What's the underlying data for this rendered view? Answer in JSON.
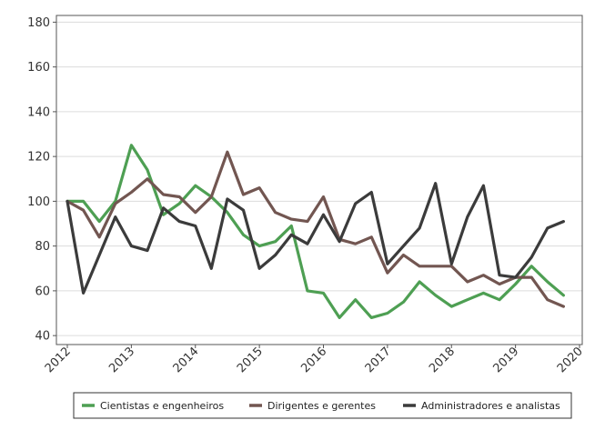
{
  "chart_data": {
    "type": "line",
    "title": "",
    "xlabel": "",
    "ylabel": "",
    "x_ticks": [
      "2012",
      "2013",
      "2014",
      "2015",
      "2016",
      "2017",
      "2018",
      "2019",
      "2020"
    ],
    "y_ticks": [
      40,
      60,
      80,
      100,
      120,
      140,
      160,
      180
    ],
    "xlim": [
      2012,
      2020
    ],
    "ylim": [
      36,
      183
    ],
    "grid": "horizontal",
    "legend_position": "bottom",
    "x": [
      2012.0,
      2012.25,
      2012.5,
      2012.75,
      2013.0,
      2013.25,
      2013.5,
      2013.75,
      2014.0,
      2014.25,
      2014.5,
      2014.75,
      2015.0,
      2015.25,
      2015.5,
      2015.75,
      2016.0,
      2016.25,
      2016.5,
      2016.75,
      2017.0,
      2017.25,
      2017.5,
      2017.75,
      2018.0,
      2018.25,
      2018.5,
      2018.75,
      2019.0,
      2019.25,
      2019.5,
      2019.75
    ],
    "series": [
      {
        "name": "Cientistas e engenheiros",
        "color": "#4e9f53",
        "values": [
          100,
          100,
          91,
          100,
          125,
          114,
          94,
          99,
          107,
          102,
          95,
          85,
          80,
          82,
          89,
          60,
          59,
          48,
          56,
          48,
          50,
          55,
          64,
          58,
          53,
          56,
          59,
          56,
          63,
          71,
          64,
          58
        ]
      },
      {
        "name": "Dirigentes e gerentes",
        "color": "#725651",
        "values": [
          100,
          96,
          84,
          99,
          104,
          110,
          103,
          102,
          95,
          102,
          122,
          103,
          106,
          95,
          92,
          91,
          102,
          83,
          81,
          84,
          68,
          76,
          71,
          71,
          71,
          64,
          67,
          63,
          66,
          66,
          56,
          53
        ]
      },
      {
        "name": "Administradores e analistas",
        "color": "#3b3b3b",
        "values": [
          100,
          59,
          76,
          93,
          80,
          78,
          97,
          91,
          89,
          70,
          101,
          96,
          70,
          76,
          85,
          81,
          94,
          82,
          99,
          104,
          72,
          80,
          88,
          108,
          72,
          93,
          107,
          67,
          66,
          75,
          88,
          91
        ]
      }
    ]
  }
}
